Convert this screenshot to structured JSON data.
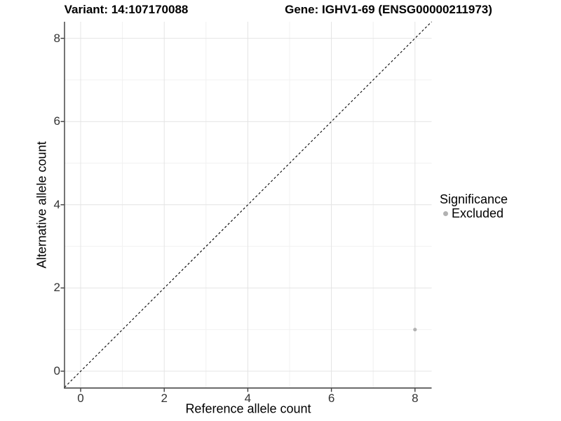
{
  "titles": {
    "variant": "Variant: 14:107170088",
    "gene": "Gene: IGHV1-69 (ENSG00000211973)"
  },
  "axes": {
    "x_label": "Reference allele count",
    "y_label": "Alternative allele count"
  },
  "legend": {
    "title": "Significance",
    "items": [
      {
        "label": "Excluded",
        "color": "#b2b2b2"
      }
    ]
  },
  "colors": {
    "background": "#ffffff",
    "major_grid": "#e4e4e4",
    "minor_grid": "#f1f1f1",
    "axis_line": "#3a3a3a",
    "tick_mark": "#3a3a3a",
    "identity_line": "#000000",
    "point": "#b2b2b2"
  },
  "chart_data": {
    "type": "scatter",
    "title": "Variant: 14:107170088 | Gene: IGHV1-69 (ENSG00000211973)",
    "xlabel": "Reference allele count",
    "ylabel": "Alternative allele count",
    "xlim": [
      -0.4,
      8.4
    ],
    "ylim": [
      -0.4,
      8.4
    ],
    "x_ticks": [
      0,
      2,
      4,
      6,
      8
    ],
    "y_ticks": [
      0,
      2,
      4,
      6,
      8
    ],
    "grid": {
      "major": [
        0,
        2,
        4,
        6,
        8
      ],
      "minor": [
        1,
        3,
        5,
        7
      ]
    },
    "points": [
      {
        "x": 8,
        "y": 1,
        "series": "Excluded",
        "color": "#b2b2b2"
      }
    ],
    "reference_line": {
      "equation": "y = x",
      "style": "dashed",
      "color": "#000000"
    },
    "legend_position": "right"
  }
}
